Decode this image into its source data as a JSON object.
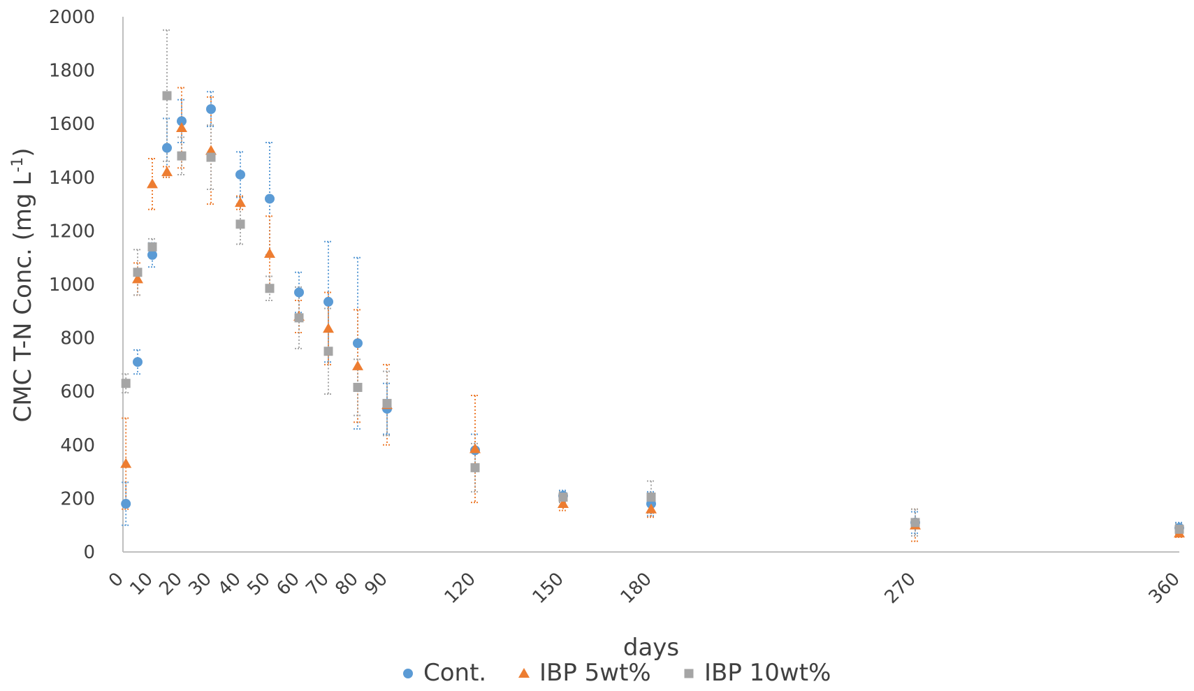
{
  "chart_data": {
    "type": "scatter",
    "title": "",
    "xlabel": "days",
    "ylabel": "CMC T-N Conc. (mg L",
    "ylabel_sup": "-1",
    "ylabel_close": ")",
    "ylim": [
      0,
      2000
    ],
    "y_ticks": [
      "0",
      "200",
      "400",
      "600",
      "800",
      "1000",
      "1200",
      "1400",
      "1600",
      "1800",
      "2000"
    ],
    "y_tick_values": [
      0,
      200,
      400,
      600,
      800,
      1000,
      1200,
      1400,
      1600,
      1800,
      2000
    ],
    "x_ticks": [
      "0",
      "10",
      "20",
      "30",
      "40",
      "50",
      "60",
      "70",
      "80",
      "90",
      "120",
      "150",
      "180",
      "270",
      "360"
    ],
    "x_tick_values": [
      0,
      10,
      20,
      30,
      40,
      50,
      60,
      70,
      80,
      90,
      120,
      150,
      180,
      270,
      360
    ],
    "xlim": [
      0,
      360
    ],
    "grid": false,
    "legend_position": "bottom",
    "series": [
      {
        "name": "Cont.",
        "color": "#5b9bd5",
        "marker": "circle",
        "x": [
          1,
          5,
          10,
          15,
          20,
          30,
          40,
          50,
          60,
          70,
          80,
          90,
          120,
          150,
          180,
          270,
          360
        ],
        "y": [
          180,
          710,
          1110,
          1510,
          1610,
          1655,
          1410,
          1320,
          970,
          935,
          780,
          535,
          380,
          210,
          180,
          110,
          90
        ],
        "err": [
          80,
          45,
          45,
          110,
          80,
          65,
          85,
          210,
          75,
          225,
          320,
          95,
          60,
          20,
          45,
          40,
          20
        ]
      },
      {
        "name": "IBP  5wt%",
        "color": "#ed7d31",
        "marker": "triangle",
        "x": [
          1,
          5,
          10,
          15,
          20,
          30,
          40,
          50,
          60,
          70,
          80,
          90,
          120,
          150,
          180,
          270,
          360
        ],
        "y": [
          330,
          1020,
          1375,
          1420,
          1585,
          1500,
          1305,
          1115,
          880,
          835,
          695,
          550,
          385,
          180,
          160,
          100,
          70
        ],
        "err": [
          170,
          60,
          95,
          20,
          150,
          200,
          25,
          140,
          60,
          135,
          210,
          150,
          200,
          25,
          30,
          60,
          15
        ]
      },
      {
        "name": "IBP  10wt%",
        "color": "#a5a5a5",
        "marker": "square",
        "x": [
          1,
          5,
          10,
          15,
          20,
          30,
          40,
          50,
          60,
          70,
          80,
          90,
          120,
          150,
          180,
          270,
          360
        ],
        "y": [
          630,
          1045,
          1140,
          1705,
          1480,
          1475,
          1225,
          985,
          875,
          750,
          615,
          555,
          315,
          205,
          205,
          110,
          85
        ],
        "err": [
          35,
          85,
          30,
          245,
          70,
          120,
          75,
          45,
          115,
          160,
          105,
          120,
          90,
          20,
          60,
          50,
          20
        ]
      }
    ]
  }
}
